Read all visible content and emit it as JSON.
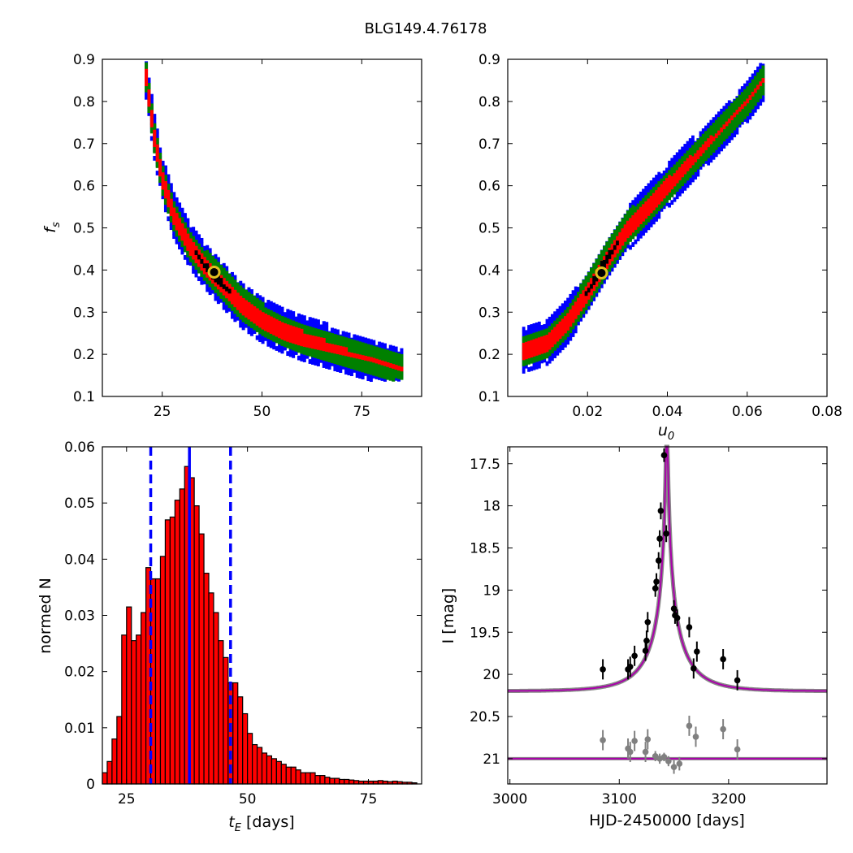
{
  "figure": {
    "title": "BLG149.4.76178"
  },
  "chart_data": [
    {
      "type": "heatmap",
      "panel": "top-left",
      "xlabel": "",
      "ylabel": "f_s",
      "xlim": [
        10,
        90
      ],
      "ylim": [
        0.1,
        0.9
      ],
      "x_ticks": [
        25,
        50,
        75
      ],
      "y_ticks": [
        0.1,
        0.2,
        0.3,
        0.4,
        0.5,
        0.6,
        0.7,
        0.8,
        0.9
      ],
      "levels": [
        "black",
        "red",
        "green",
        "blue"
      ],
      "ridge": [
        [
          21,
          0.86
        ],
        [
          23,
          0.72
        ],
        [
          25,
          0.62
        ],
        [
          28,
          0.53
        ],
        [
          32,
          0.46
        ],
        [
          36,
          0.41
        ],
        [
          40,
          0.37
        ],
        [
          45,
          0.32
        ],
        [
          50,
          0.285
        ],
        [
          55,
          0.26
        ],
        [
          60,
          0.24
        ],
        [
          65,
          0.225
        ],
        [
          70,
          0.21
        ],
        [
          75,
          0.195
        ],
        [
          80,
          0.18
        ],
        [
          85,
          0.165
        ]
      ],
      "best_fit": {
        "x": 38,
        "y": 0.395
      }
    },
    {
      "type": "heatmap",
      "panel": "top-right",
      "xlabel": "u_0",
      "ylabel": "",
      "xlim": [
        0.0,
        0.08
      ],
      "ylim": [
        0.1,
        0.9
      ],
      "x_ticks": [
        0.02,
        0.04,
        0.06,
        0.08
      ],
      "y_ticks": [
        0.1,
        0.2,
        0.3,
        0.4,
        0.5,
        0.6,
        0.7,
        0.8,
        0.9
      ],
      "levels": [
        "black",
        "red",
        "green",
        "blue"
      ],
      "ridge": [
        [
          0.004,
          0.21
        ],
        [
          0.01,
          0.23
        ],
        [
          0.015,
          0.28
        ],
        [
          0.02,
          0.35
        ],
        [
          0.025,
          0.43
        ],
        [
          0.03,
          0.5
        ],
        [
          0.035,
          0.55
        ],
        [
          0.04,
          0.6
        ],
        [
          0.045,
          0.65
        ],
        [
          0.05,
          0.7
        ],
        [
          0.055,
          0.75
        ],
        [
          0.06,
          0.8
        ],
        [
          0.064,
          0.85
        ]
      ],
      "best_fit": {
        "x": 0.0235,
        "y": 0.393
      }
    },
    {
      "type": "bar",
      "panel": "bottom-left",
      "xlabel": "t_E [days]",
      "ylabel": "normed N",
      "xlim": [
        20,
        86
      ],
      "ylim": [
        0.0,
        0.06
      ],
      "x_ticks": [
        25,
        50,
        75
      ],
      "y_ticks": [
        0.0,
        0.01,
        0.02,
        0.03,
        0.04,
        0.05,
        0.06
      ],
      "bin_start": 20.5,
      "bin_width": 1.0,
      "values": [
        0.002,
        0.004,
        0.008,
        0.012,
        0.0265,
        0.0315,
        0.0255,
        0.0265,
        0.0305,
        0.0385,
        0.0365,
        0.0365,
        0.0405,
        0.047,
        0.0475,
        0.0505,
        0.0525,
        0.0565,
        0.0545,
        0.0495,
        0.0445,
        0.0375,
        0.034,
        0.0305,
        0.0255,
        0.0225,
        0.018,
        0.018,
        0.0155,
        0.0125,
        0.009,
        0.007,
        0.0065,
        0.0055,
        0.005,
        0.0045,
        0.004,
        0.0035,
        0.003,
        0.003,
        0.0025,
        0.002,
        0.002,
        0.002,
        0.0015,
        0.0015,
        0.0012,
        0.001,
        0.001,
        0.0008,
        0.0008,
        0.0007,
        0.0006,
        0.0005,
        0.0005,
        0.0005,
        0.0005,
        0.0006,
        0.0005,
        0.0004,
        0.0005,
        0.0004,
        0.0003,
        0.0003,
        0.0002
      ],
      "bar_color": "#ff0000",
      "vlines": [
        {
          "x": 30.0,
          "style": "dashed",
          "color": "#0000ff"
        },
        {
          "x": 38.0,
          "style": "solid",
          "color": "#0000ff"
        },
        {
          "x": 46.5,
          "style": "dashed",
          "color": "#0000ff"
        }
      ]
    },
    {
      "type": "scatter",
      "panel": "bottom-right",
      "xlabel": "HJD-2450000 [days]",
      "ylabel": "I [mag]",
      "xlim": [
        2998,
        3290
      ],
      "ylim": [
        21.3,
        17.3
      ],
      "y_inverted": true,
      "x_ticks": [
        3000,
        3100,
        3200
      ],
      "y_ticks": [
        17.5,
        18.0,
        18.5,
        19.0,
        19.5,
        20.0,
        20.5,
        21.0
      ],
      "model": {
        "t0": 3143.5,
        "tE": 38,
        "u0": 0.0235,
        "fs": 0.395,
        "baseline": 20.2,
        "color": "#aa00aa"
      },
      "data_points": [
        {
          "x": 3085,
          "y": 19.94,
          "err": 0.12
        },
        {
          "x": 3108,
          "y": 19.94,
          "err": 0.12
        },
        {
          "x": 3110,
          "y": 19.91,
          "err": 0.12
        },
        {
          "x": 3114,
          "y": 19.78,
          "err": 0.12
        },
        {
          "x": 3124,
          "y": 19.72,
          "err": 0.12
        },
        {
          "x": 3125,
          "y": 19.6,
          "err": 0.12
        },
        {
          "x": 3126,
          "y": 19.38,
          "err": 0.12
        },
        {
          "x": 3133,
          "y": 18.98,
          "err": 0.1
        },
        {
          "x": 3134,
          "y": 18.9,
          "err": 0.1
        },
        {
          "x": 3136,
          "y": 18.65,
          "err": 0.1
        },
        {
          "x": 3137,
          "y": 18.39,
          "err": 0.1
        },
        {
          "x": 3138,
          "y": 18.06,
          "err": 0.1
        },
        {
          "x": 3141,
          "y": 17.4,
          "err": 0.08
        },
        {
          "x": 3143,
          "y": 18.33,
          "err": 0.1
        },
        {
          "x": 3150,
          "y": 19.22,
          "err": 0.1
        },
        {
          "x": 3151,
          "y": 19.3,
          "err": 0.1
        },
        {
          "x": 3153,
          "y": 19.33,
          "err": 0.1
        },
        {
          "x": 3164,
          "y": 19.44,
          "err": 0.12
        },
        {
          "x": 3168,
          "y": 19.93,
          "err": 0.12
        },
        {
          "x": 3171,
          "y": 19.73,
          "err": 0.12
        },
        {
          "x": 3195,
          "y": 19.82,
          "err": 0.12
        },
        {
          "x": 3208,
          "y": 20.07,
          "err": 0.12
        }
      ],
      "residuals_offset": 21.0,
      "residual_points": [
        {
          "x": 3085,
          "y": 20.78,
          "err": 0.12
        },
        {
          "x": 3108,
          "y": 20.88,
          "err": 0.12
        },
        {
          "x": 3110,
          "y": 20.92,
          "err": 0.12
        },
        {
          "x": 3114,
          "y": 20.79,
          "err": 0.12
        },
        {
          "x": 3124,
          "y": 20.92,
          "err": 0.12
        },
        {
          "x": 3126,
          "y": 20.77,
          "err": 0.12
        },
        {
          "x": 3133,
          "y": 20.97,
          "err": 0.06
        },
        {
          "x": 3137,
          "y": 21.0,
          "err": 0.06
        },
        {
          "x": 3141,
          "y": 20.98,
          "err": 0.05
        },
        {
          "x": 3145,
          "y": 21.03,
          "err": 0.06
        },
        {
          "x": 3150,
          "y": 21.1,
          "err": 0.08
        },
        {
          "x": 3155,
          "y": 21.06,
          "err": 0.08
        },
        {
          "x": 3164,
          "y": 20.61,
          "err": 0.12
        },
        {
          "x": 3170,
          "y": 20.74,
          "err": 0.12
        },
        {
          "x": 3195,
          "y": 20.65,
          "err": 0.12
        },
        {
          "x": 3208,
          "y": 20.89,
          "err": 0.12
        }
      ],
      "data_color": "#000000",
      "residual_color": "#808080"
    }
  ]
}
